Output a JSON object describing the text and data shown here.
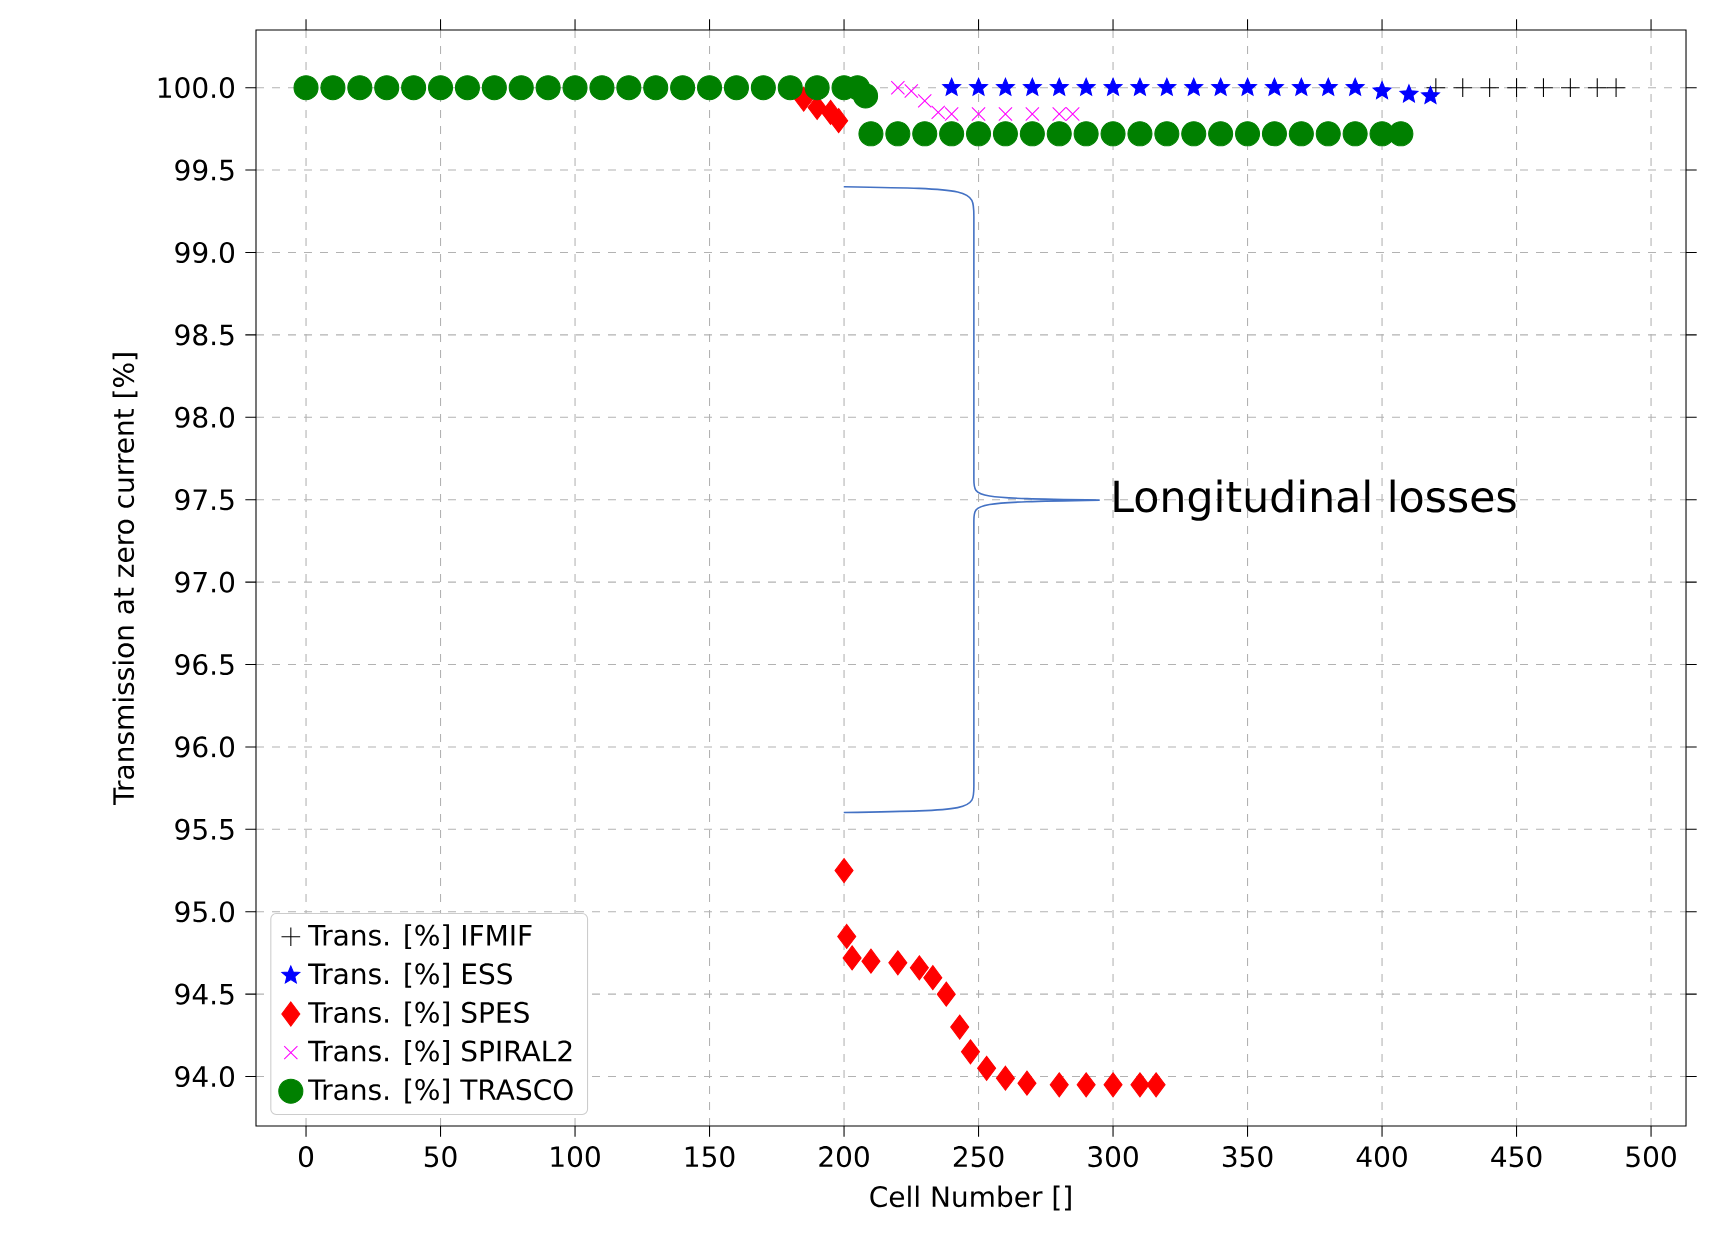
{
  "chart_data": {
    "type": "scatter",
    "xlabel": "Cell Number []",
    "ylabel": "Transmission at zero current [%]",
    "xlim": [
      -18.6,
      513
    ],
    "ylim": [
      93.7,
      100.35
    ],
    "xticks": [
      0,
      50,
      100,
      150,
      200,
      250,
      300,
      350,
      400,
      450,
      500
    ],
    "yticks": [
      {
        "value": 94,
        "label": "94.0"
      },
      {
        "value": 94.5,
        "label": "94.5"
      },
      {
        "value": 95,
        "label": "95.0"
      },
      {
        "value": 95.5,
        "label": "95.5"
      },
      {
        "value": 96,
        "label": "96.0"
      },
      {
        "value": 96.5,
        "label": "96.5"
      },
      {
        "value": 97,
        "label": "97.0"
      },
      {
        "value": 97.5,
        "label": "97.5"
      },
      {
        "value": 98,
        "label": "98.0"
      },
      {
        "value": 98.5,
        "label": "98.5"
      },
      {
        "value": 99,
        "label": "99.0"
      },
      {
        "value": 99.5,
        "label": "99.5"
      },
      {
        "value": 100,
        "label": "100.0"
      }
    ],
    "grid": true,
    "legend": "bottom left",
    "annotations": [
      "Longitudinal losses"
    ],
    "series": [
      {
        "name": "Trans. [%] IFMIF",
        "color": "#000000",
        "marker": "plus",
        "x": [
          420,
          430,
          440,
          450,
          460,
          470,
          480,
          487
        ],
        "values": [
          100,
          100,
          100,
          100,
          100,
          100,
          100,
          100
        ]
      },
      {
        "name": "Trans. [%] ESS",
        "color": "#0000ff",
        "marker": "star",
        "x": [
          240,
          250,
          260,
          270,
          280,
          290,
          300,
          310,
          320,
          330,
          340,
          350,
          360,
          370,
          380,
          390,
          400,
          410,
          418
        ],
        "values": [
          100,
          100,
          100,
          100,
          100,
          100,
          100,
          100,
          100,
          100,
          100,
          100,
          100,
          100,
          100,
          100,
          99.98,
          99.96,
          99.95
        ]
      },
      {
        "name": "Trans. [%] SPES",
        "color": "#ff0000",
        "marker": "diamond",
        "x": [
          185,
          190,
          195,
          198,
          200,
          201,
          203,
          210,
          220,
          228,
          233,
          238,
          243,
          247,
          253,
          260,
          268,
          280,
          290,
          300,
          310,
          316
        ],
        "values": [
          99.93,
          99.88,
          99.85,
          99.8,
          95.25,
          94.85,
          94.72,
          94.7,
          94.69,
          94.66,
          94.6,
          94.5,
          94.3,
          94.15,
          94.05,
          93.99,
          93.96,
          93.95,
          93.95,
          93.95,
          93.95,
          93.95
        ]
      },
      {
        "name": "Trans. [%] SPIRAL2",
        "color": "#ff00ff",
        "marker": "cross",
        "x": [
          220,
          225,
          230,
          235,
          240,
          250,
          260,
          270,
          280,
          285
        ],
        "values": [
          100,
          99.98,
          99.92,
          99.85,
          99.84,
          99.84,
          99.84,
          99.84,
          99.84,
          99.84
        ]
      },
      {
        "name": "Trans. [%] TRASCO",
        "color": "#008000",
        "marker": "circle",
        "x": [
          0,
          10,
          20,
          30,
          40,
          50,
          60,
          70,
          80,
          90,
          100,
          110,
          120,
          130,
          140,
          150,
          160,
          170,
          180,
          190,
          200,
          205,
          208,
          210,
          220,
          230,
          240,
          250,
          260,
          270,
          280,
          290,
          300,
          310,
          320,
          330,
          340,
          350,
          360,
          370,
          380,
          390,
          400,
          407
        ],
        "values": [
          100,
          100,
          100,
          100,
          100,
          100,
          100,
          100,
          100,
          100,
          100,
          100,
          100,
          100,
          100,
          100,
          100,
          100,
          100,
          100,
          100,
          100,
          99.95,
          99.72,
          99.72,
          99.72,
          99.72,
          99.72,
          99.72,
          99.72,
          99.72,
          99.72,
          99.72,
          99.72,
          99.72,
          99.72,
          99.72,
          99.72,
          99.72,
          99.72,
          99.72,
          99.72,
          99.72,
          99.72
        ]
      }
    ]
  }
}
